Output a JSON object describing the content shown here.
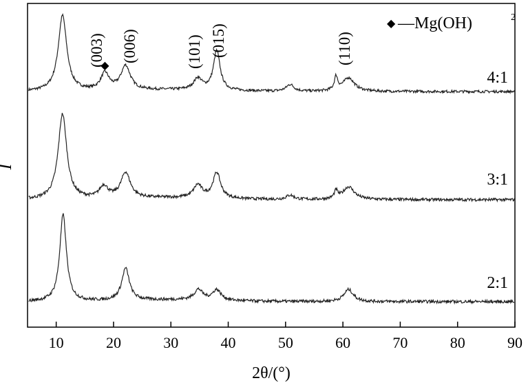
{
  "chart_data": {
    "type": "line",
    "xlabel": "2θ/(°)",
    "ylabel": "I",
    "xlim": [
      5,
      90
    ],
    "xticks": [
      10,
      20,
      30,
      40,
      50,
      60,
      70,
      80,
      90
    ],
    "grid": false,
    "line_color": "#222222",
    "legend": {
      "marker": "◆",
      "text": "—Mg(OH)",
      "superscript": "2",
      "position": "top-right"
    },
    "peak_annotations": [
      {
        "label": "(003)",
        "x": 11.2
      },
      {
        "label": "(006)",
        "x": 22.0
      },
      {
        "label": "(101)",
        "x": 34.8
      },
      {
        "label": "(015)",
        "x": 38.0
      },
      {
        "label": "(110)",
        "x": 60.5
      }
    ],
    "marker_annotations": [
      {
        "symbol": "◆",
        "x": 18.5,
        "series": "4:1"
      }
    ],
    "series": [
      {
        "name": "4:1",
        "baseline": 0.0,
        "peaks": [
          {
            "x": 11.1,
            "height": 1.0,
            "width": 0.9
          },
          {
            "x": 18.5,
            "height": 0.22,
            "width": 0.9
          },
          {
            "x": 22.1,
            "height": 0.32,
            "width": 1.0
          },
          {
            "x": 34.7,
            "height": 0.15,
            "width": 0.9
          },
          {
            "x": 38.0,
            "height": 0.52,
            "width": 0.7
          },
          {
            "x": 50.8,
            "height": 0.09,
            "width": 0.8
          },
          {
            "x": 58.8,
            "height": 0.18,
            "width": 0.35
          },
          {
            "x": 61.0,
            "height": 0.18,
            "width": 1.2
          }
        ]
      },
      {
        "name": "3:1",
        "baseline": 0.0,
        "peaks": [
          {
            "x": 11.1,
            "height": 1.0,
            "width": 0.9
          },
          {
            "x": 18.3,
            "height": 0.14,
            "width": 0.9
          },
          {
            "x": 22.1,
            "height": 0.3,
            "width": 1.0
          },
          {
            "x": 34.7,
            "height": 0.15,
            "width": 0.9
          },
          {
            "x": 38.0,
            "height": 0.3,
            "width": 0.8
          },
          {
            "x": 50.8,
            "height": 0.05,
            "width": 0.8
          },
          {
            "x": 58.8,
            "height": 0.09,
            "width": 0.35
          },
          {
            "x": 61.0,
            "height": 0.15,
            "width": 1.2
          }
        ]
      },
      {
        "name": "2:1",
        "baseline": 0.0,
        "peaks": [
          {
            "x": 11.2,
            "height": 1.0,
            "width": 0.7
          },
          {
            "x": 22.1,
            "height": 0.37,
            "width": 0.8
          },
          {
            "x": 34.8,
            "height": 0.12,
            "width": 0.9
          },
          {
            "x": 38.0,
            "height": 0.12,
            "width": 0.9
          },
          {
            "x": 61.0,
            "height": 0.14,
            "width": 1.0
          }
        ]
      }
    ]
  }
}
